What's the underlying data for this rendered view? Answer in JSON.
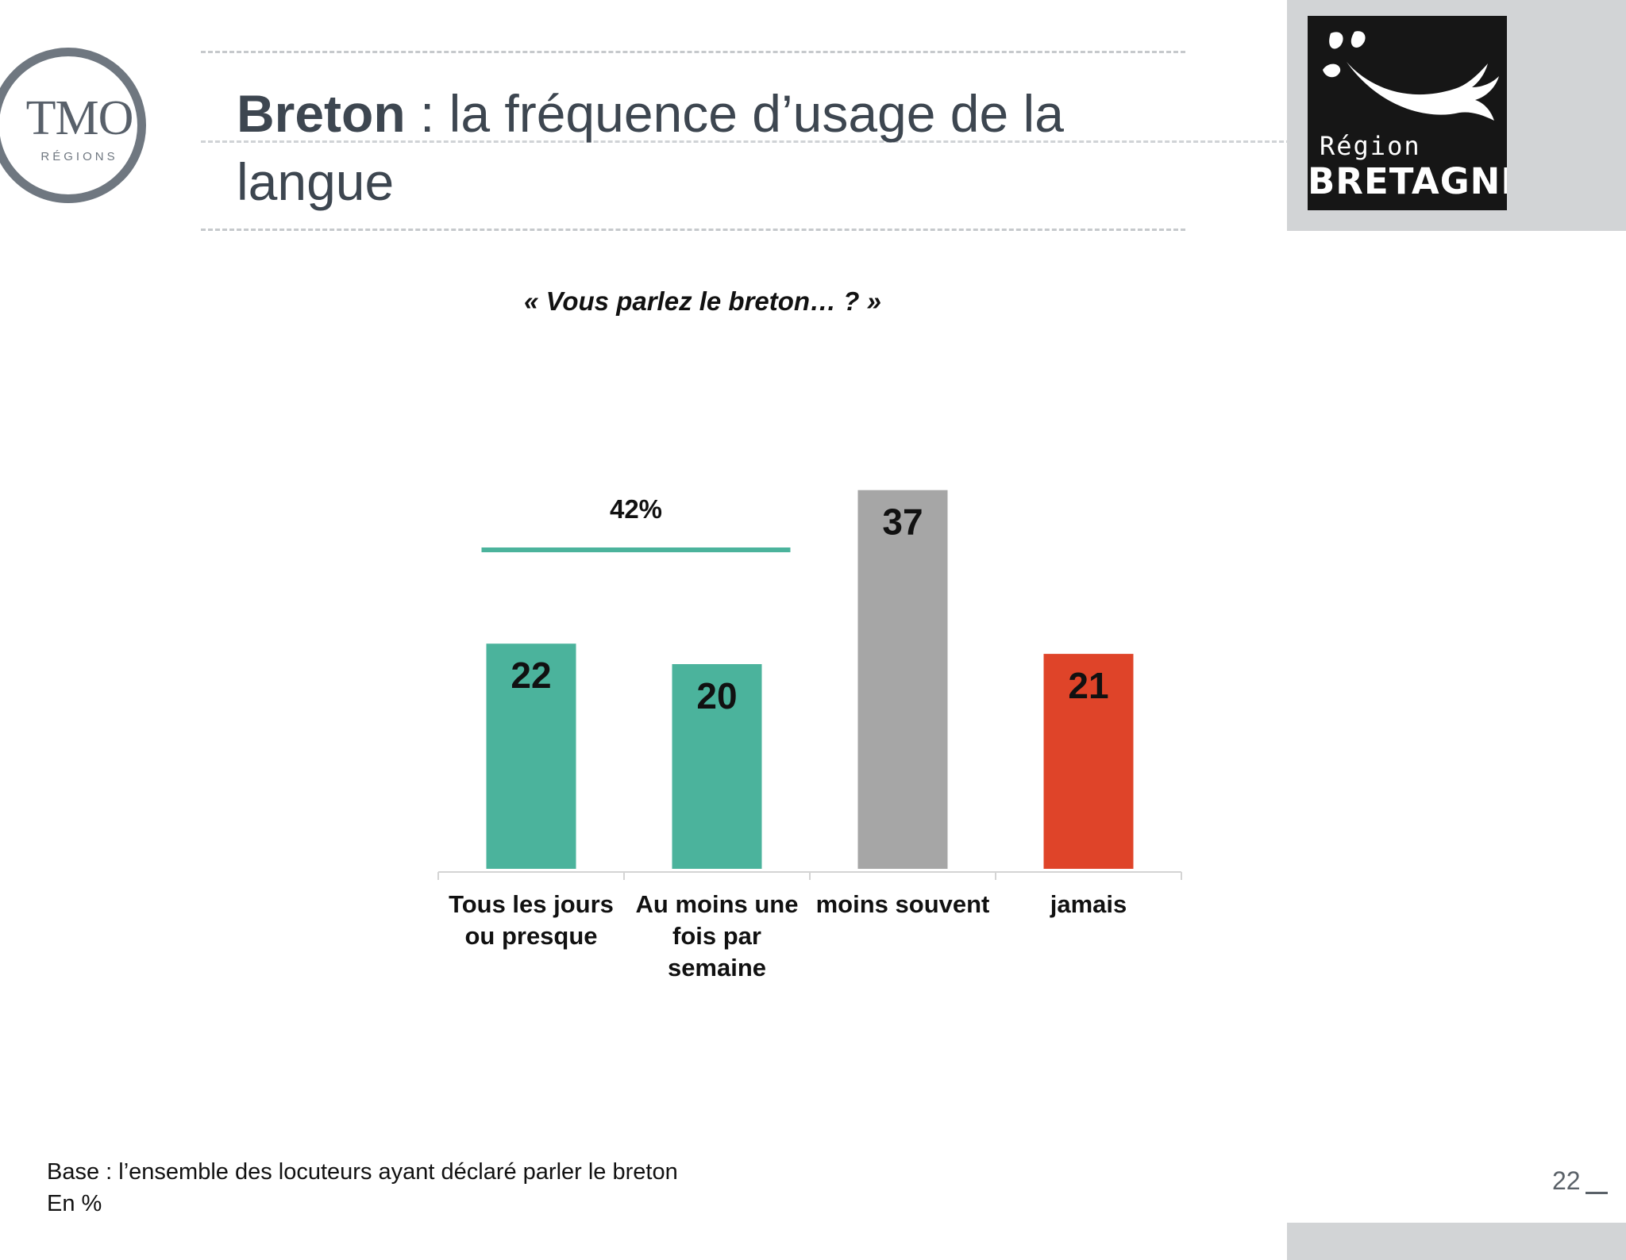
{
  "brand": {
    "tmo_name": "TMO",
    "tmo_sub": "RÉGIONS",
    "region_line1": "Région",
    "region_line2": "BRETAGNE"
  },
  "header": {
    "title_bold": "Breton",
    "title_rest": " : la fréquence d’usage de la langue"
  },
  "question": "« Vous parlez le breton… ? »",
  "chart_data": {
    "type": "bar",
    "title": "",
    "xlabel": "",
    "ylabel": "",
    "ylim": [
      0,
      40
    ],
    "grid": false,
    "categories": [
      "Tous les jours ou presque",
      "Au moins une fois par semaine",
      "moins souvent",
      "jamais"
    ],
    "category_lines": [
      [
        "Tous les jours",
        "ou presque"
      ],
      [
        "Au moins une",
        "fois par",
        "semaine"
      ],
      [
        "moins souvent"
      ],
      [
        "jamais"
      ]
    ],
    "values": [
      22,
      20,
      37,
      21
    ],
    "colors": [
      "#4bb39c",
      "#4bb39c",
      "#a6a6a6",
      "#df4429"
    ],
    "bracket": {
      "label": "42%",
      "categories": [
        0,
        1
      ],
      "color": "#4bb39c"
    }
  },
  "footer": {
    "base": "Base : l’ensemble des locuteurs ayant déclaré parler le breton",
    "unit": "En %",
    "page_number": "22"
  }
}
